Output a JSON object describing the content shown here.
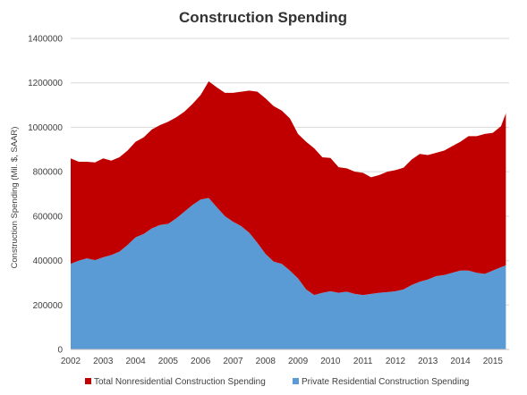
{
  "chart_data": {
    "type": "area",
    "stacked": true,
    "title": "Construction Spending",
    "xlabel": "",
    "ylabel": "Construction Spending (Mil. $, SAAR)",
    "xlim": [
      2002,
      2015.5
    ],
    "ylim": [
      0,
      1400000
    ],
    "yticks": [
      0,
      200000,
      400000,
      600000,
      800000,
      1000000,
      1200000,
      1400000
    ],
    "ytick_labels": [
      "0",
      "200000",
      "400000",
      "600000",
      "800000",
      "1000000",
      "1200000",
      "1400000"
    ],
    "xticks": [
      2002,
      2003,
      2004,
      2005,
      2006,
      2007,
      2008,
      2009,
      2010,
      2011,
      2012,
      2013,
      2014,
      2015
    ],
    "xtick_labels": [
      "2002",
      "2003",
      "2004",
      "2005",
      "2006",
      "2007",
      "2008",
      "2009",
      "2010",
      "2011",
      "2012",
      "2013",
      "2014",
      "2015"
    ],
    "grid": "horizontal",
    "legend_position": "bottom",
    "x": [
      2002.0,
      2002.25,
      2002.5,
      2002.75,
      2003.0,
      2003.25,
      2003.5,
      2003.75,
      2004.0,
      2004.25,
      2004.5,
      2004.75,
      2005.0,
      2005.25,
      2005.5,
      2005.75,
      2006.0,
      2006.25,
      2006.5,
      2006.75,
      2007.0,
      2007.25,
      2007.5,
      2007.75,
      2008.0,
      2008.25,
      2008.5,
      2008.75,
      2009.0,
      2009.25,
      2009.5,
      2009.75,
      2010.0,
      2010.25,
      2010.5,
      2010.75,
      2011.0,
      2011.25,
      2011.5,
      2011.75,
      2012.0,
      2012.25,
      2012.5,
      2012.75,
      2013.0,
      2013.25,
      2013.5,
      2013.75,
      2014.0,
      2014.25,
      2014.5,
      2014.75,
      2015.0,
      2015.25,
      2015.4
    ],
    "series": [
      {
        "name": "Private Residential Construction Spending",
        "color": "#5B9BD5",
        "values": [
          385000,
          400000,
          410000,
          402000,
          415000,
          425000,
          440000,
          470000,
          505000,
          520000,
          545000,
          560000,
          565000,
          590000,
          620000,
          650000,
          675000,
          682000,
          640000,
          600000,
          575000,
          555000,
          525000,
          480000,
          430000,
          395000,
          385000,
          355000,
          320000,
          270000,
          245000,
          255000,
          262000,
          255000,
          260000,
          250000,
          245000,
          250000,
          255000,
          258000,
          262000,
          270000,
          290000,
          305000,
          315000,
          330000,
          335000,
          345000,
          355000,
          355000,
          345000,
          340000,
          355000,
          370000,
          378000
        ]
      },
      {
        "name": "Total Nonresidential Construction Spending",
        "color": "#C00000",
        "values": [
          475000,
          445000,
          435000,
          440000,
          445000,
          425000,
          425000,
          425000,
          430000,
          435000,
          445000,
          450000,
          460000,
          455000,
          450000,
          455000,
          470000,
          525000,
          540000,
          555000,
          580000,
          605000,
          640000,
          680000,
          700000,
          700000,
          690000,
          685000,
          650000,
          665000,
          660000,
          610000,
          600000,
          565000,
          555000,
          550000,
          550000,
          525000,
          530000,
          542000,
          545000,
          548000,
          565000,
          575000,
          560000,
          555000,
          560000,
          570000,
          580000,
          605000,
          615000,
          630000,
          620000,
          635000,
          685000
        ]
      }
    ]
  }
}
